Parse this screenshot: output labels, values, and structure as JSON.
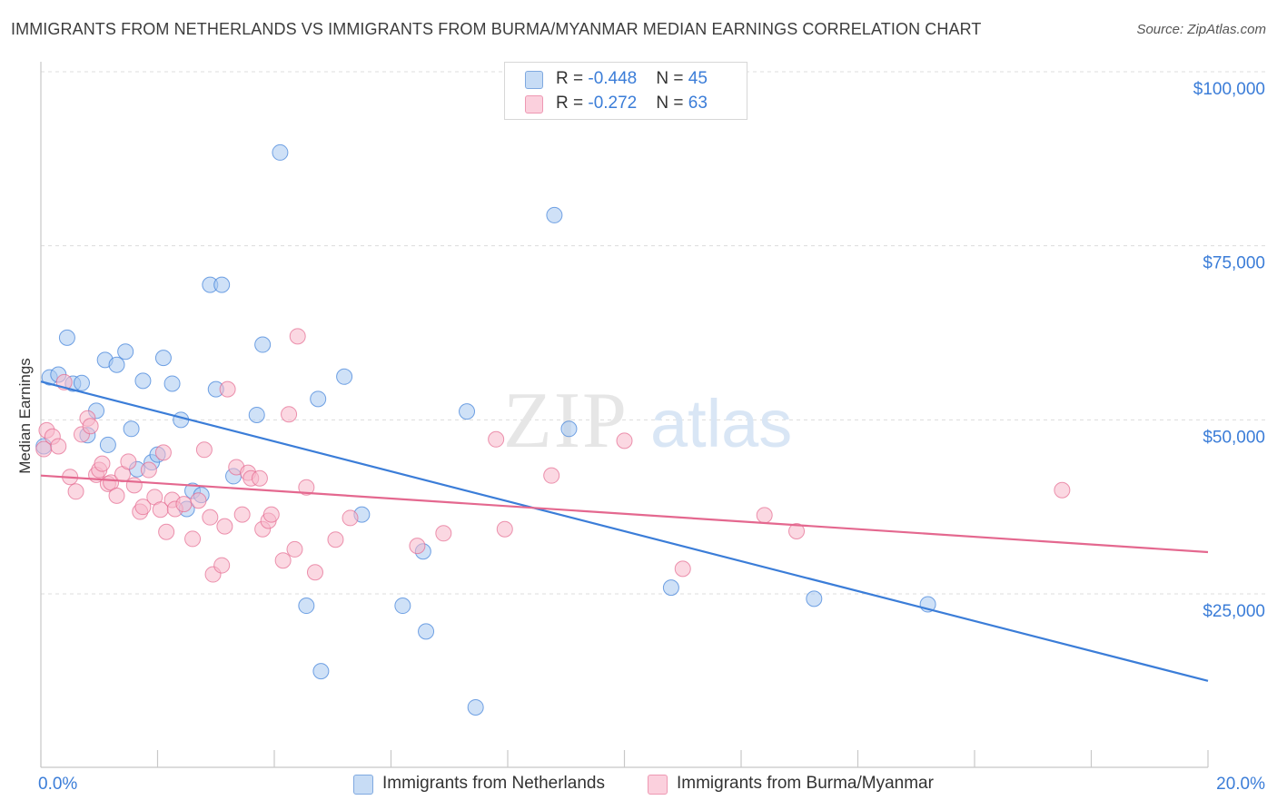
{
  "title": "IMMIGRANTS FROM NETHERLANDS VS IMMIGRANTS FROM BURMA/MYANMAR MEDIAN EARNINGS CORRELATION CHART",
  "source": "Source: ZipAtlas.com",
  "watermark": {
    "zip": "ZIP",
    "atlas": "atlas"
  },
  "legend_box": {
    "rows": [
      {
        "r_label": "R = ",
        "r_value": "-0.448",
        "n_label": "N = ",
        "n_value": "45",
        "color": "#a8c8f0"
      },
      {
        "r_label": "R = ",
        "r_value": "-0.272",
        "n_label": "N = ",
        "n_value": "63",
        "color": "#f7b8cb"
      }
    ]
  },
  "bottom_legend": [
    {
      "label": "Immigrants from Netherlands",
      "color": "#a8c8f0"
    },
    {
      "label": "Immigrants from Burma/Myanmar",
      "color": "#f7b8cb"
    }
  ],
  "chart_data": {
    "type": "scatter",
    "title": "IMMIGRANTS FROM NETHERLANDS VS IMMIGRANTS FROM BURMA/MYANMAR MEDIAN EARNINGS CORRELATION CHART",
    "xlabel": "",
    "ylabel": "Median Earnings",
    "xlim": [
      0,
      20
    ],
    "ylim": [
      0,
      105000
    ],
    "x_tick_labels": [
      "0.0%",
      "20.0%"
    ],
    "y_ticks": [
      25000,
      50000,
      75000,
      100000
    ],
    "y_tick_labels": [
      "$25,000",
      "$50,000",
      "$75,000",
      "$100,000"
    ],
    "grid": true,
    "legend": "top-center",
    "series": [
      {
        "name": "Immigrants from Netherlands",
        "color": "#3b7dd8",
        "fill": "#a8c8f0",
        "trend": {
          "x": [
            0,
            20
          ],
          "y": [
            55500,
            12500
          ]
        },
        "points": [
          [
            0.05,
            46200
          ],
          [
            0.15,
            56100
          ],
          [
            0.3,
            56500
          ],
          [
            0.45,
            61800
          ],
          [
            0.55,
            55200
          ],
          [
            0.7,
            55300
          ],
          [
            0.8,
            47800
          ],
          [
            0.95,
            51300
          ],
          [
            1.1,
            58600
          ],
          [
            1.15,
            46400
          ],
          [
            1.3,
            57900
          ],
          [
            1.45,
            59800
          ],
          [
            1.55,
            48700
          ],
          [
            1.65,
            42900
          ],
          [
            1.75,
            55600
          ],
          [
            1.9,
            43900
          ],
          [
            2.0,
            45000
          ],
          [
            2.1,
            58900
          ],
          [
            2.25,
            55200
          ],
          [
            2.4,
            50000
          ],
          [
            2.5,
            37200
          ],
          [
            2.6,
            39800
          ],
          [
            2.75,
            39200
          ],
          [
            2.9,
            69400
          ],
          [
            3.0,
            54400
          ],
          [
            3.1,
            69400
          ],
          [
            3.3,
            41900
          ],
          [
            3.7,
            50700
          ],
          [
            3.8,
            60800
          ],
          [
            4.1,
            88400
          ],
          [
            4.55,
            23300
          ],
          [
            4.75,
            53000
          ],
          [
            4.8,
            13900
          ],
          [
            5.2,
            56200
          ],
          [
            5.5,
            36400
          ],
          [
            6.2,
            23300
          ],
          [
            6.55,
            31100
          ],
          [
            6.6,
            19600
          ],
          [
            7.3,
            51200
          ],
          [
            7.45,
            8700
          ],
          [
            8.8,
            79400
          ],
          [
            9.05,
            48700
          ],
          [
            10.8,
            25900
          ],
          [
            13.25,
            24300
          ],
          [
            15.2,
            23500
          ]
        ]
      },
      {
        "name": "Immigrants from Burma/Myanmar",
        "color": "#e4688f",
        "fill": "#f7b8cb",
        "trend": {
          "x": [
            0,
            20
          ],
          "y": [
            42000,
            31000
          ]
        },
        "points": [
          [
            0.05,
            45800
          ],
          [
            0.1,
            48500
          ],
          [
            0.2,
            47600
          ],
          [
            0.3,
            46200
          ],
          [
            0.4,
            55400
          ],
          [
            0.5,
            41800
          ],
          [
            0.6,
            39700
          ],
          [
            0.7,
            47900
          ],
          [
            0.8,
            50200
          ],
          [
            0.85,
            49100
          ],
          [
            0.95,
            42100
          ],
          [
            1.0,
            42800
          ],
          [
            1.05,
            43700
          ],
          [
            1.15,
            40800
          ],
          [
            1.2,
            41000
          ],
          [
            1.3,
            39100
          ],
          [
            1.4,
            42200
          ],
          [
            1.5,
            44000
          ],
          [
            1.6,
            40600
          ],
          [
            1.7,
            36800
          ],
          [
            1.75,
            37500
          ],
          [
            1.85,
            42800
          ],
          [
            1.95,
            38900
          ],
          [
            2.05,
            37100
          ],
          [
            2.1,
            45300
          ],
          [
            2.15,
            33900
          ],
          [
            2.25,
            38500
          ],
          [
            2.3,
            37200
          ],
          [
            2.45,
            37900
          ],
          [
            2.6,
            32900
          ],
          [
            2.7,
            38400
          ],
          [
            2.8,
            45700
          ],
          [
            2.9,
            36000
          ],
          [
            2.95,
            27800
          ],
          [
            3.1,
            29100
          ],
          [
            3.15,
            34700
          ],
          [
            3.2,
            54400
          ],
          [
            3.35,
            43200
          ],
          [
            3.45,
            36400
          ],
          [
            3.55,
            42400
          ],
          [
            3.6,
            41600
          ],
          [
            3.75,
            41600
          ],
          [
            3.8,
            34300
          ],
          [
            3.9,
            35500
          ],
          [
            3.95,
            36400
          ],
          [
            4.15,
            29800
          ],
          [
            4.25,
            50800
          ],
          [
            4.35,
            31400
          ],
          [
            4.4,
            62000
          ],
          [
            4.55,
            40300
          ],
          [
            4.7,
            28100
          ],
          [
            5.05,
            32800
          ],
          [
            5.3,
            35900
          ],
          [
            6.45,
            31900
          ],
          [
            6.9,
            33700
          ],
          [
            7.8,
            47200
          ],
          [
            7.95,
            34300
          ],
          [
            8.75,
            42000
          ],
          [
            10.0,
            47000
          ],
          [
            11.0,
            28600
          ],
          [
            12.4,
            36300
          ],
          [
            12.95,
            34000
          ],
          [
            17.5,
            39900
          ]
        ]
      }
    ]
  }
}
